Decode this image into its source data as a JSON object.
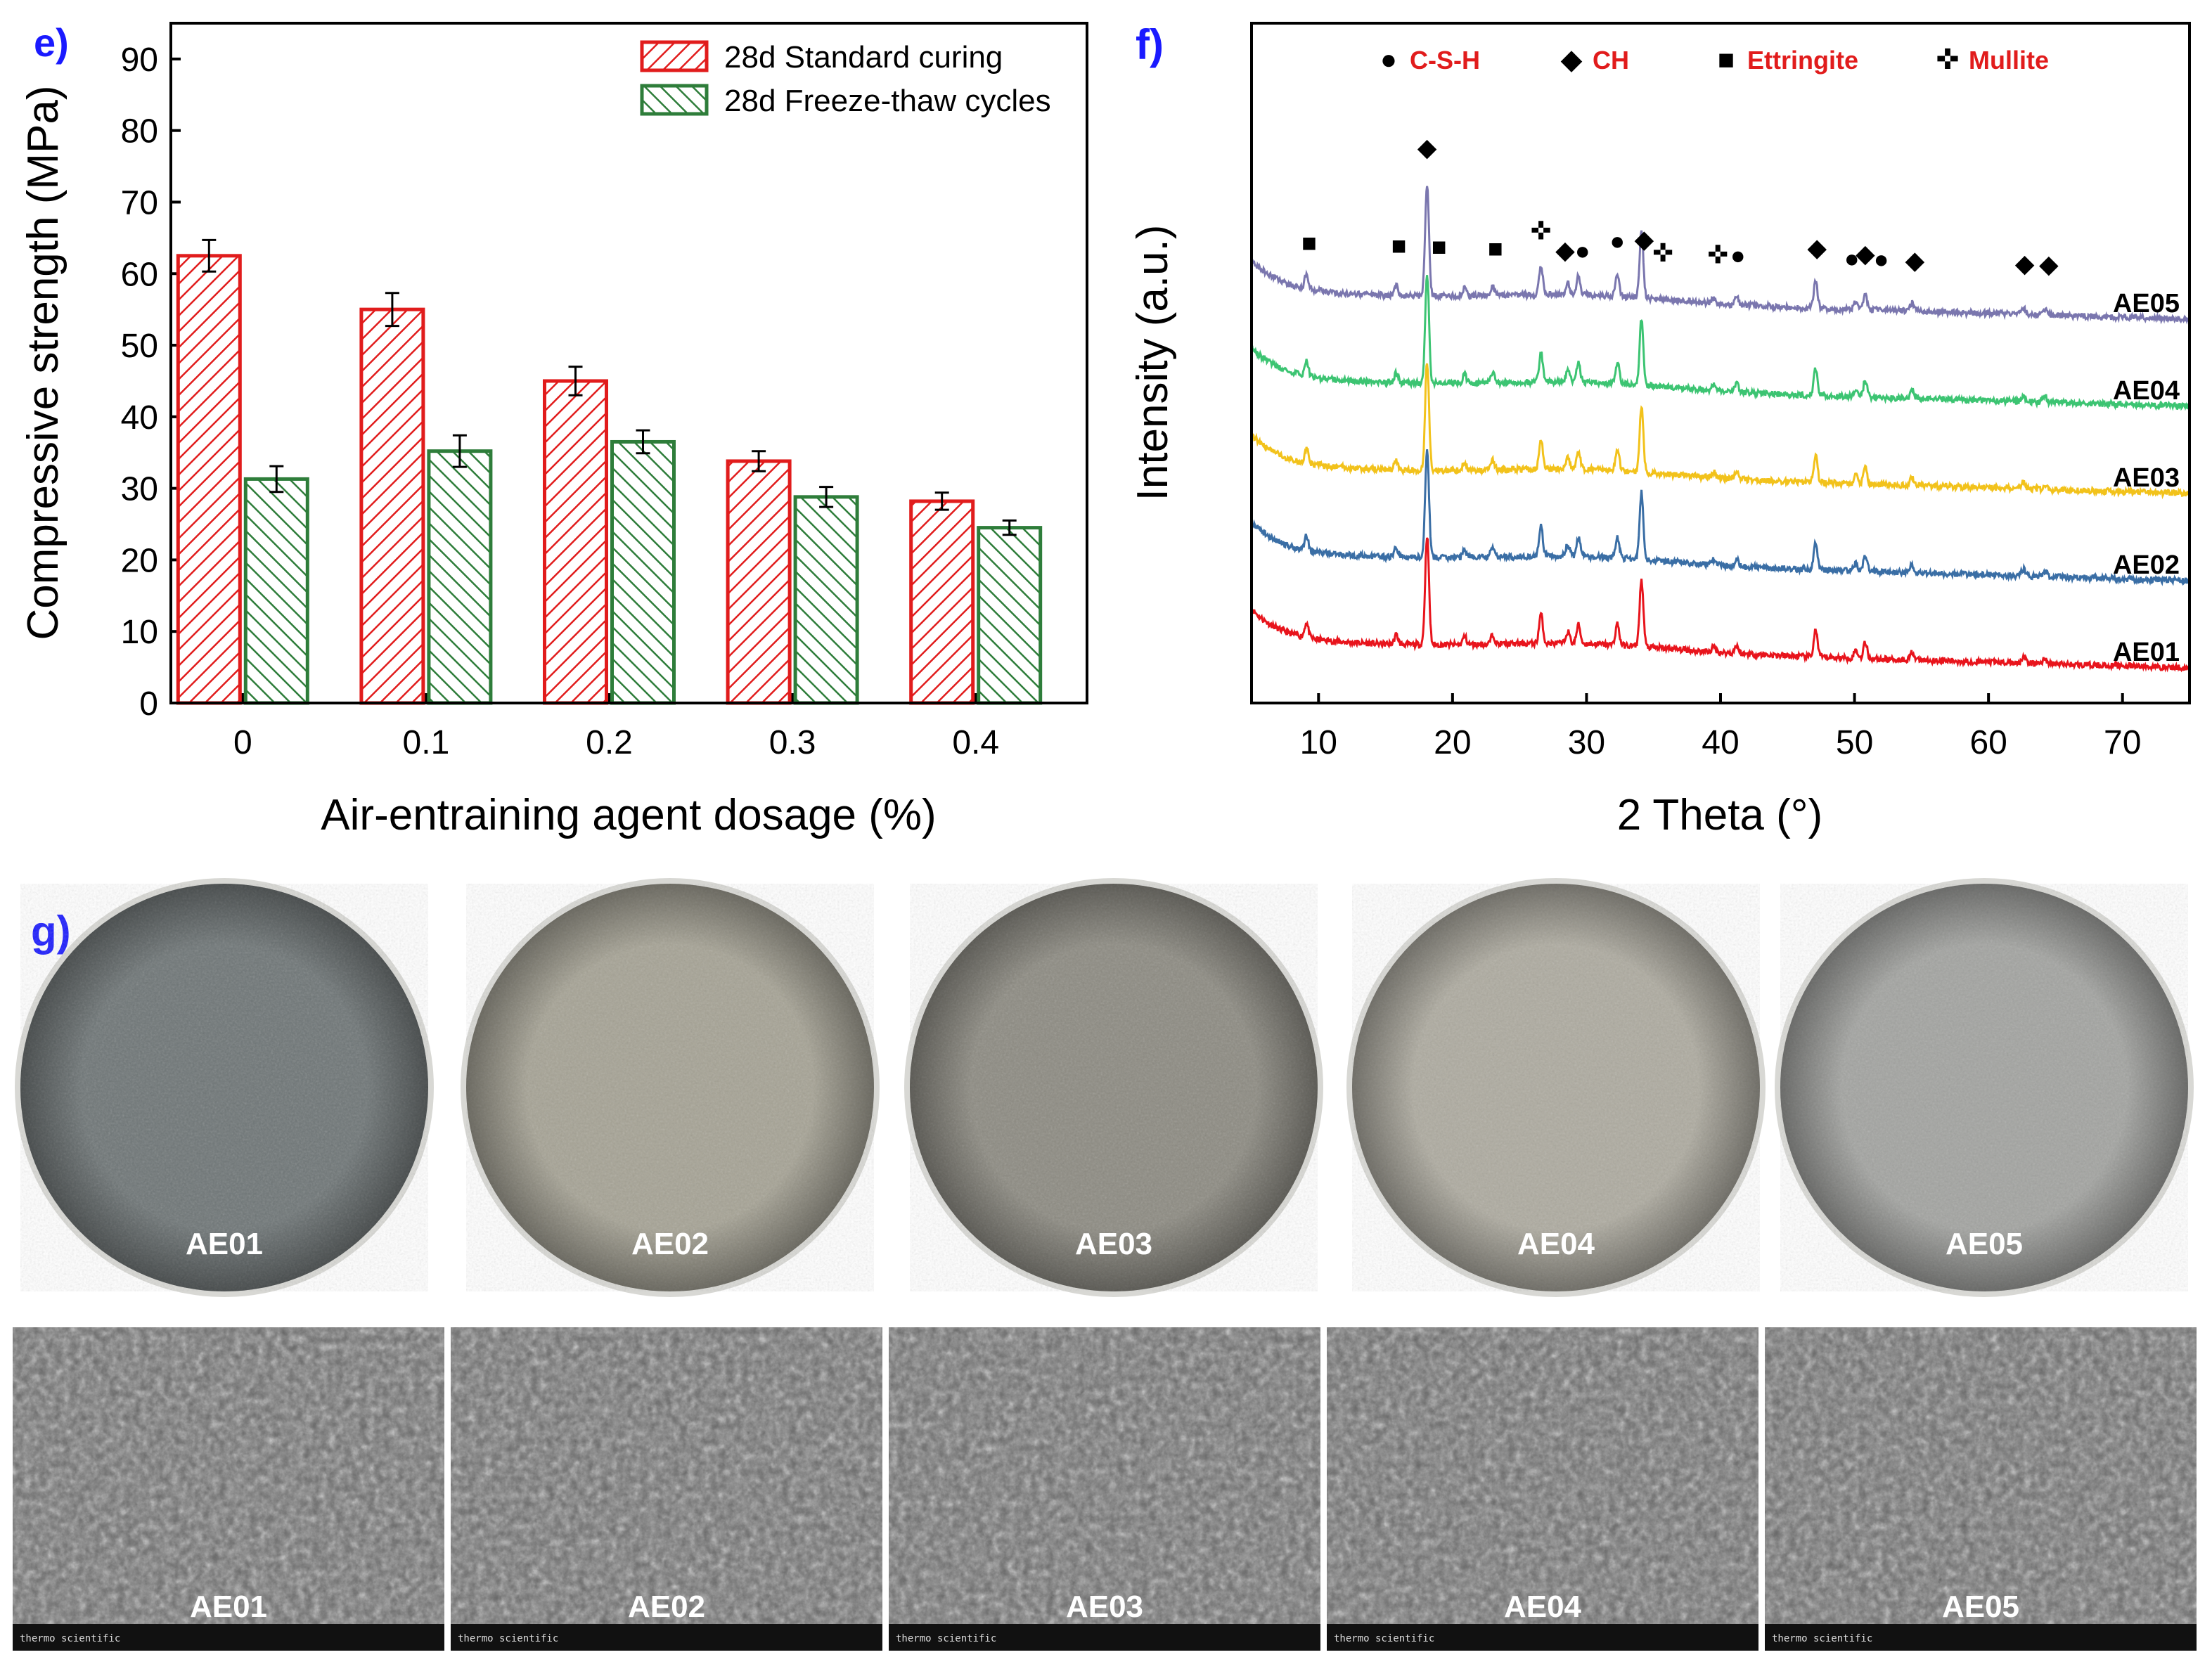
{
  "panels": {
    "e": "e)",
    "f": "f)",
    "g": "g)"
  },
  "colors": {
    "standard": "#e11c1c",
    "freeze": "#2e7d3a",
    "panel_label": "#1a1aff",
    "legend_red_text": "#e11c1c"
  },
  "chart_data": [
    {
      "type": "bar",
      "panel": "e",
      "categories": [
        "0",
        "0.1",
        "0.2",
        "0.3",
        "0.4"
      ],
      "series": [
        {
          "name": "28d Standard curing",
          "values": [
            62.5,
            55.0,
            45.0,
            33.8,
            28.2
          ],
          "errors": [
            2.2,
            2.3,
            2.0,
            1.4,
            1.2
          ]
        },
        {
          "name": "28d Freeze-thaw cycles",
          "values": [
            31.3,
            35.2,
            36.5,
            28.8,
            24.5
          ],
          "errors": [
            1.8,
            2.2,
            1.6,
            1.4,
            1.0
          ]
        }
      ],
      "xlabel": "Air-entraining agent dosage (%)",
      "ylabel": "Compressive strength (MPa)",
      "ylim": [
        0,
        95
      ],
      "yticks": [
        0,
        10,
        20,
        30,
        40,
        50,
        60,
        70,
        80,
        90
      ],
      "legend_position": "top-right"
    },
    {
      "type": "line",
      "panel": "f",
      "xlabel": "2 Theta (°)",
      "ylabel": "Intensity (a.u.)",
      "xlim": [
        5,
        75
      ],
      "xticks": [
        10,
        20,
        30,
        40,
        50,
        60,
        70
      ],
      "series": [
        {
          "name": "AE01",
          "color": "#e8141c",
          "offset": 0
        },
        {
          "name": "AE02",
          "color": "#3a6ea5",
          "offset": 1
        },
        {
          "name": "AE03",
          "color": "#f2c21b",
          "offset": 2
        },
        {
          "name": "AE04",
          "color": "#3cc472",
          "offset": 3
        },
        {
          "name": "AE05",
          "color": "#7a76ae",
          "offset": 4
        }
      ],
      "peaks": [
        {
          "x": 9.1,
          "h": 0.55
        },
        {
          "x": 15.8,
          "h": 0.35
        },
        {
          "x": 18.1,
          "h": 4.1
        },
        {
          "x": 20.9,
          "h": 0.3
        },
        {
          "x": 23.0,
          "h": 0.35
        },
        {
          "x": 26.6,
          "h": 1.1
        },
        {
          "x": 28.6,
          "h": 0.45
        },
        {
          "x": 29.4,
          "h": 0.7
        },
        {
          "x": 32.3,
          "h": 0.8
        },
        {
          "x": 34.1,
          "h": 2.5
        },
        {
          "x": 39.5,
          "h": 0.2
        },
        {
          "x": 41.2,
          "h": 0.3
        },
        {
          "x": 47.1,
          "h": 1.0
        },
        {
          "x": 50.1,
          "h": 0.3
        },
        {
          "x": 50.8,
          "h": 0.6
        },
        {
          "x": 54.3,
          "h": 0.3
        },
        {
          "x": 62.6,
          "h": 0.25
        },
        {
          "x": 64.2,
          "h": 0.2
        }
      ],
      "legend": [
        {
          "marker": "●",
          "label": "C-S-H"
        },
        {
          "marker": "◆",
          "label": "CH"
        },
        {
          "marker": "■",
          "label": "Ettringite"
        },
        {
          "marker": "✜",
          "label": "Mullite"
        }
      ],
      "annotations": [
        {
          "marker": "■",
          "x": 9.3
        },
        {
          "marker": "■",
          "x": 16.0
        },
        {
          "marker": "◆",
          "x": 18.1
        },
        {
          "marker": "■",
          "x": 19.0
        },
        {
          "marker": "■",
          "x": 23.2
        },
        {
          "marker": "✜",
          "x": 26.6
        },
        {
          "marker": "◆",
          "x": 28.4
        },
        {
          "marker": "●",
          "x": 29.7
        },
        {
          "marker": "●",
          "x": 32.3
        },
        {
          "marker": "◆",
          "x": 34.3
        },
        {
          "marker": "✜",
          "x": 35.7
        },
        {
          "marker": "✜",
          "x": 39.8
        },
        {
          "marker": "●",
          "x": 41.3
        },
        {
          "marker": "◆",
          "x": 47.2
        },
        {
          "marker": "●",
          "x": 49.8
        },
        {
          "marker": "◆",
          "x": 50.8
        },
        {
          "marker": "●",
          "x": 52.0
        },
        {
          "marker": "◆",
          "x": 54.5
        },
        {
          "marker": "◆",
          "x": 62.7
        },
        {
          "marker": "◆",
          "x": 64.5
        }
      ]
    }
  ],
  "photos": {
    "samples": [
      "AE01",
      "AE02",
      "AE03",
      "AE04",
      "AE05"
    ],
    "disc_colors": [
      "#6f7677",
      "#a6a395",
      "#8d8b82",
      "#aeaba0",
      "#a3a4a1"
    ],
    "sem_footer": "thermo scientific"
  }
}
